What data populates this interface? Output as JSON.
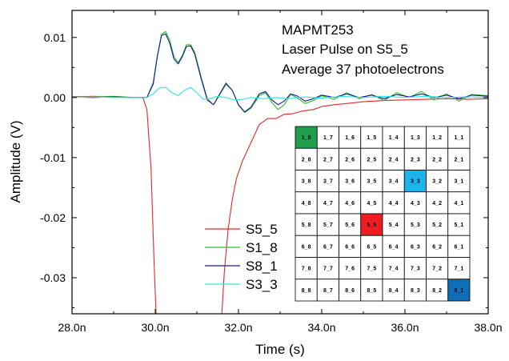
{
  "chart_data": {
    "type": "line",
    "xlabel": "Time (s)",
    "ylabel": "Amplitude (V)",
    "xlim": [
      28.0,
      38.0
    ],
    "ylim": [
      -0.036,
      0.0145
    ],
    "xticks": [
      {
        "value": 28,
        "label": "28.0n"
      },
      {
        "value": 30,
        "label": "30.0n"
      },
      {
        "value": 32,
        "label": "32.0n"
      },
      {
        "value": 34,
        "label": "34.0n"
      },
      {
        "value": 36,
        "label": "36.0n"
      },
      {
        "value": 38,
        "label": "38.0n"
      }
    ],
    "yticks": [
      {
        "value": 0.01,
        "label": "0.01"
      },
      {
        "value": 0.0,
        "label": "0.00"
      },
      {
        "value": -0.01,
        "label": "-0.01"
      },
      {
        "value": -0.02,
        "label": "-0.02"
      },
      {
        "value": -0.03,
        "label": "-0.03"
      }
    ],
    "grid": false,
    "legend_position": "lower-left-center",
    "annotations": [
      "MAPMT253",
      "Laser Pulse on S5_5",
      "Average 37 photoelectrons"
    ],
    "series": [
      {
        "name": "S5_5",
        "color": "#e8262b",
        "points": [
          [
            28.0,
            0.0001
          ],
          [
            28.5,
            0.0002
          ],
          [
            29.0,
            0.0001
          ],
          [
            29.5,
            0.0
          ],
          [
            29.7,
            0.0
          ],
          [
            29.8,
            -0.002
          ],
          [
            29.9,
            -0.012
          ],
          [
            29.97,
            -0.027
          ],
          [
            30.02,
            -0.036
          ],
          [
            31.6,
            -0.036
          ],
          [
            31.66,
            -0.029
          ],
          [
            31.75,
            -0.022
          ],
          [
            31.85,
            -0.017
          ],
          [
            31.95,
            -0.0135
          ],
          [
            32.1,
            -0.0105
          ],
          [
            32.3,
            -0.0075
          ],
          [
            32.5,
            -0.0045
          ],
          [
            32.7,
            -0.0035
          ],
          [
            32.9,
            -0.0035
          ],
          [
            33.1,
            -0.0028
          ],
          [
            33.3,
            -0.0027
          ],
          [
            33.5,
            -0.0023
          ],
          [
            33.8,
            -0.002
          ],
          [
            34.0,
            -0.0015
          ],
          [
            34.3,
            -0.0012
          ],
          [
            34.6,
            -0.001
          ],
          [
            35.0,
            -0.0007
          ],
          [
            35.5,
            -0.0005
          ],
          [
            36.0,
            -0.0004
          ],
          [
            36.5,
            -0.0003
          ],
          [
            37.0,
            -0.0002
          ],
          [
            37.5,
            -0.0003
          ],
          [
            38.0,
            -0.0002
          ]
        ]
      },
      {
        "name": "S1_8",
        "color": "#27c227",
        "points": [
          [
            28.0,
            0.0001
          ],
          [
            28.5,
            0.0001
          ],
          [
            29.0,
            0.0002
          ],
          [
            29.5,
            0.0
          ],
          [
            29.8,
            0.0
          ],
          [
            29.95,
            0.0025
          ],
          [
            30.05,
            0.007
          ],
          [
            30.15,
            0.0105
          ],
          [
            30.25,
            0.011
          ],
          [
            30.35,
            0.0095
          ],
          [
            30.45,
            0.0068
          ],
          [
            30.55,
            0.0058
          ],
          [
            30.65,
            0.007
          ],
          [
            30.75,
            0.0088
          ],
          [
            30.85,
            0.0088
          ],
          [
            30.95,
            0.0075
          ],
          [
            31.1,
            0.0035
          ],
          [
            31.25,
            -0.0002
          ],
          [
            31.4,
            -0.0012
          ],
          [
            31.55,
            0.0005
          ],
          [
            31.7,
            0.0022
          ],
          [
            31.85,
            0.0012
          ],
          [
            32.0,
            -0.0013
          ],
          [
            32.15,
            -0.0025
          ],
          [
            32.3,
            -0.0018
          ],
          [
            32.5,
            0.0003
          ],
          [
            32.65,
            0.0008
          ],
          [
            32.8,
            -0.0008
          ],
          [
            32.95,
            -0.002
          ],
          [
            33.1,
            -0.0012
          ],
          [
            33.25,
            0.0005
          ],
          [
            33.4,
            0.0
          ],
          [
            33.6,
            -0.001
          ],
          [
            33.8,
            -0.0005
          ],
          [
            34.0,
            0.0003
          ],
          [
            34.3,
            -0.0003
          ],
          [
            34.6,
            0.0008
          ],
          [
            34.9,
            -0.0002
          ],
          [
            35.2,
            0.0005
          ],
          [
            35.5,
            -0.0005
          ],
          [
            35.8,
            0.0008
          ],
          [
            36.1,
            0.0
          ],
          [
            36.4,
            0.001
          ],
          [
            36.7,
            -0.0004
          ],
          [
            37.0,
            0.0006
          ],
          [
            37.3,
            -0.0006
          ],
          [
            37.6,
            0.0005
          ],
          [
            38.0,
            0.0003
          ]
        ]
      },
      {
        "name": "S8_1",
        "color": "#1a1a9c",
        "points": [
          [
            28.0,
            0.0001
          ],
          [
            28.5,
            0.0
          ],
          [
            29.0,
            0.0001
          ],
          [
            29.5,
            0.0
          ],
          [
            29.8,
            0.0
          ],
          [
            29.95,
            0.0022
          ],
          [
            30.05,
            0.0068
          ],
          [
            30.15,
            0.0103
          ],
          [
            30.25,
            0.0106
          ],
          [
            30.35,
            0.009
          ],
          [
            30.45,
            0.0064
          ],
          [
            30.55,
            0.0056
          ],
          [
            30.65,
            0.0068
          ],
          [
            30.75,
            0.0085
          ],
          [
            30.85,
            0.0086
          ],
          [
            30.95,
            0.0072
          ],
          [
            31.1,
            0.0032
          ],
          [
            31.25,
            -0.0004
          ],
          [
            31.4,
            -0.0012
          ],
          [
            31.55,
            0.0006
          ],
          [
            31.7,
            0.0024
          ],
          [
            31.85,
            0.0012
          ],
          [
            32.0,
            -0.0012
          ],
          [
            32.15,
            -0.0024
          ],
          [
            32.3,
            -0.0016
          ],
          [
            32.5,
            0.0006
          ],
          [
            32.65,
            0.001
          ],
          [
            32.8,
            -0.0004
          ],
          [
            32.95,
            -0.0012
          ],
          [
            33.1,
            -0.0006
          ],
          [
            33.25,
            0.0006
          ],
          [
            33.4,
            0.0003
          ],
          [
            33.6,
            -0.0006
          ],
          [
            33.8,
            -0.0002
          ],
          [
            34.0,
            0.0004
          ],
          [
            34.3,
            0.0
          ],
          [
            34.6,
            0.0006
          ],
          [
            34.9,
            0.0
          ],
          [
            35.2,
            0.0004
          ],
          [
            35.5,
            -0.0002
          ],
          [
            35.8,
            0.0005
          ],
          [
            36.1,
            0.0001
          ],
          [
            36.4,
            0.0006
          ],
          [
            36.7,
            0.0
          ],
          [
            37.0,
            0.0004
          ],
          [
            37.3,
            -0.0002
          ],
          [
            37.6,
            0.0004
          ],
          [
            38.0,
            0.0002
          ]
        ]
      },
      {
        "name": "S3_3",
        "color": "#33e5e5",
        "points": [
          [
            28.0,
            0.0
          ],
          [
            28.5,
            0.0001
          ],
          [
            29.0,
            0.0
          ],
          [
            29.5,
            0.0
          ],
          [
            29.8,
            0.0
          ],
          [
            29.95,
            0.0006
          ],
          [
            30.1,
            0.0016
          ],
          [
            30.25,
            0.0017
          ],
          [
            30.4,
            0.0008
          ],
          [
            30.55,
            0.0003
          ],
          [
            30.7,
            0.0012
          ],
          [
            30.85,
            0.0017
          ],
          [
            31.0,
            0.0008
          ],
          [
            31.15,
            -0.0003
          ],
          [
            31.3,
            -0.0002
          ],
          [
            31.5,
            0.0002
          ],
          [
            31.7,
            0.0
          ],
          [
            31.9,
            -0.0004
          ],
          [
            32.1,
            -0.0003
          ],
          [
            32.3,
            0.0
          ],
          [
            32.6,
            -0.0002
          ],
          [
            32.9,
            0.0
          ],
          [
            33.2,
            -0.0002
          ],
          [
            33.6,
            0.0001
          ],
          [
            34.0,
            -0.0001
          ],
          [
            34.5,
            0.0002
          ],
          [
            35.0,
            0.0
          ],
          [
            35.5,
            0.0002
          ],
          [
            36.0,
            0.0
          ],
          [
            36.5,
            0.0002
          ],
          [
            37.0,
            0.0
          ],
          [
            37.5,
            0.0001
          ],
          [
            38.0,
            0.0
          ]
        ]
      }
    ],
    "pixel_map": {
      "rows": [
        [
          {
            "label": "1_8",
            "color": "#1f9e4e"
          },
          {
            "label": "1_7"
          },
          {
            "label": "1_6"
          },
          {
            "label": "1_5"
          },
          {
            "label": "1_4"
          },
          {
            "label": "1_3"
          },
          {
            "label": "1_2"
          },
          {
            "label": "1_1"
          }
        ],
        [
          {
            "label": "2_8"
          },
          {
            "label": "2_7"
          },
          {
            "label": "2_6"
          },
          {
            "label": "2_5"
          },
          {
            "label": "2_4"
          },
          {
            "label": "2_3"
          },
          {
            "label": "2_2"
          },
          {
            "label": "2_1"
          }
        ],
        [
          {
            "label": "3_8"
          },
          {
            "label": "3_7"
          },
          {
            "label": "3_6"
          },
          {
            "label": "3_5"
          },
          {
            "label": "3_4"
          },
          {
            "label": "3_3",
            "color": "#1fb3ec"
          },
          {
            "label": "3_2"
          },
          {
            "label": "3_1"
          }
        ],
        [
          {
            "label": "4_8"
          },
          {
            "label": "4_7"
          },
          {
            "label": "4_6"
          },
          {
            "label": "4_5"
          },
          {
            "label": "4_4"
          },
          {
            "label": "4_3"
          },
          {
            "label": "4_2"
          },
          {
            "label": "4_1"
          }
        ],
        [
          {
            "label": "5_8"
          },
          {
            "label": "5_7"
          },
          {
            "label": "5_6"
          },
          {
            "label": "5_5",
            "color": "#ee1c23"
          },
          {
            "label": "5_4"
          },
          {
            "label": "5_3"
          },
          {
            "label": "5_2"
          },
          {
            "label": "5_1"
          }
        ],
        [
          {
            "label": "6_8"
          },
          {
            "label": "6_7"
          },
          {
            "label": "6_6"
          },
          {
            "label": "6_5"
          },
          {
            "label": "6_4"
          },
          {
            "label": "6_3"
          },
          {
            "label": "6_2"
          },
          {
            "label": "6_1"
          }
        ],
        [
          {
            "label": "7_8"
          },
          {
            "label": "7_7"
          },
          {
            "label": "7_6"
          },
          {
            "label": "7_5"
          },
          {
            "label": "7_4"
          },
          {
            "label": "7_3"
          },
          {
            "label": "7_2"
          },
          {
            "label": "7_1"
          }
        ],
        [
          {
            "label": "8_8"
          },
          {
            "label": "8_7"
          },
          {
            "label": "8_6"
          },
          {
            "label": "8_5"
          },
          {
            "label": "8_4"
          },
          {
            "label": "8_3"
          },
          {
            "label": "8_2"
          },
          {
            "label": "8_1",
            "color": "#0e6eb8"
          }
        ]
      ]
    }
  }
}
